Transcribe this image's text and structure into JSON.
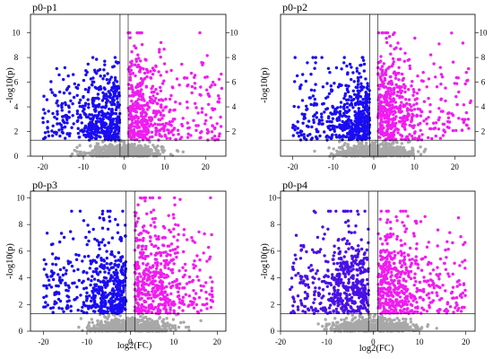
{
  "colors": {
    "down": "#1a0df2",
    "down_p4": "#4a10e6",
    "up": "#f01df0",
    "nonsig": "#a8a8a8",
    "background": "#ffffff",
    "axis": "#000000"
  },
  "chart_data": [
    {
      "type": "scatter",
      "title": "p0-p1",
      "xlabel": "",
      "ylabel": "-log10(p)",
      "xlim": [
        -23,
        25
      ],
      "ylim": [
        0,
        11.5
      ],
      "xticks": [
        -20,
        -10,
        0,
        10,
        20
      ],
      "yticks_left": [
        0,
        2,
        4,
        6,
        8,
        10
      ],
      "yticks_right": [
        2,
        4,
        6,
        8,
        10
      ],
      "vlines": [
        -1,
        1
      ],
      "hline": 1.3,
      "series": [
        {
          "role": "down-regulated",
          "color": "#1a0df2",
          "x_range": [
            -20,
            -1
          ],
          "y_range": [
            1.3,
            8
          ]
        },
        {
          "role": "up-regulated",
          "color": "#f01df0",
          "x_range": [
            1,
            24
          ],
          "y_range": [
            1.3,
            10
          ]
        },
        {
          "role": "not significant",
          "color": "#a8a8a8",
          "x_range": [
            -16,
            19
          ],
          "y_range": [
            0,
            1.3
          ]
        }
      ]
    },
    {
      "type": "scatter",
      "title": "p0-p2",
      "xlabel": "",
      "ylabel": "-log10(p)",
      "xlim": [
        -23,
        25
      ],
      "ylim": [
        0,
        11.5
      ],
      "xticks": [
        -20,
        -10,
        0,
        10,
        20
      ],
      "yticks_left": [],
      "yticks_right": [
        2,
        4,
        6,
        8,
        10
      ],
      "vlines": [
        -1,
        1
      ],
      "hline": 1.3,
      "series": [
        {
          "role": "down-regulated",
          "color": "#1a0df2",
          "x_range": [
            -20,
            -1
          ],
          "y_range": [
            1.3,
            8
          ]
        },
        {
          "role": "up-regulated",
          "color": "#f01df0",
          "x_range": [
            1,
            24
          ],
          "y_range": [
            1.3,
            10
          ]
        },
        {
          "role": "not significant",
          "color": "#a8a8a8",
          "x_range": [
            -16,
            19
          ],
          "y_range": [
            0,
            1.3
          ]
        }
      ]
    },
    {
      "type": "scatter",
      "title": "p0-p3",
      "xlabel": "log2(FC)",
      "ylabel": "-log10(p)",
      "xlim": [
        -23,
        22
      ],
      "ylim": [
        0,
        10.5
      ],
      "xticks": [
        -20,
        -10,
        0,
        10,
        20
      ],
      "yticks_left": [
        0,
        2,
        4,
        6,
        8,
        10
      ],
      "yticks_right": [],
      "vlines": [
        -1,
        1
      ],
      "hline": 1.3,
      "series": [
        {
          "role": "down-regulated",
          "color": "#1a0df2",
          "x_range": [
            -20,
            -1
          ],
          "y_range": [
            1.3,
            9
          ]
        },
        {
          "role": "up-regulated",
          "color": "#f01df0",
          "x_range": [
            1,
            19
          ],
          "y_range": [
            1.3,
            10
          ]
        },
        {
          "role": "not significant",
          "color": "#a8a8a8",
          "x_range": [
            -16,
            19
          ],
          "y_range": [
            0,
            1.3
          ]
        }
      ]
    },
    {
      "type": "scatter",
      "title": "p0-p4",
      "xlabel": "log2(FC)",
      "ylabel": "-log10(p)",
      "xlim": [
        -20,
        22
      ],
      "ylim": [
        0,
        10.5
      ],
      "xticks": [
        -20,
        -10,
        0,
        10,
        20
      ],
      "yticks_left": [
        0,
        2,
        4,
        6,
        8,
        10
      ],
      "yticks_right": [],
      "vlines": [
        -1,
        1
      ],
      "hline": 1.3,
      "series": [
        {
          "role": "down-regulated",
          "color": "#4a10e6",
          "x_range": [
            -18,
            -1
          ],
          "y_range": [
            1.3,
            9
          ]
        },
        {
          "role": "up-regulated",
          "color": "#f01df0",
          "x_range": [
            1,
            20
          ],
          "y_range": [
            1.3,
            9
          ]
        },
        {
          "role": "not significant",
          "color": "#a8a8a8",
          "x_range": [
            -16,
            19
          ],
          "y_range": [
            0,
            1.3
          ]
        }
      ]
    }
  ]
}
